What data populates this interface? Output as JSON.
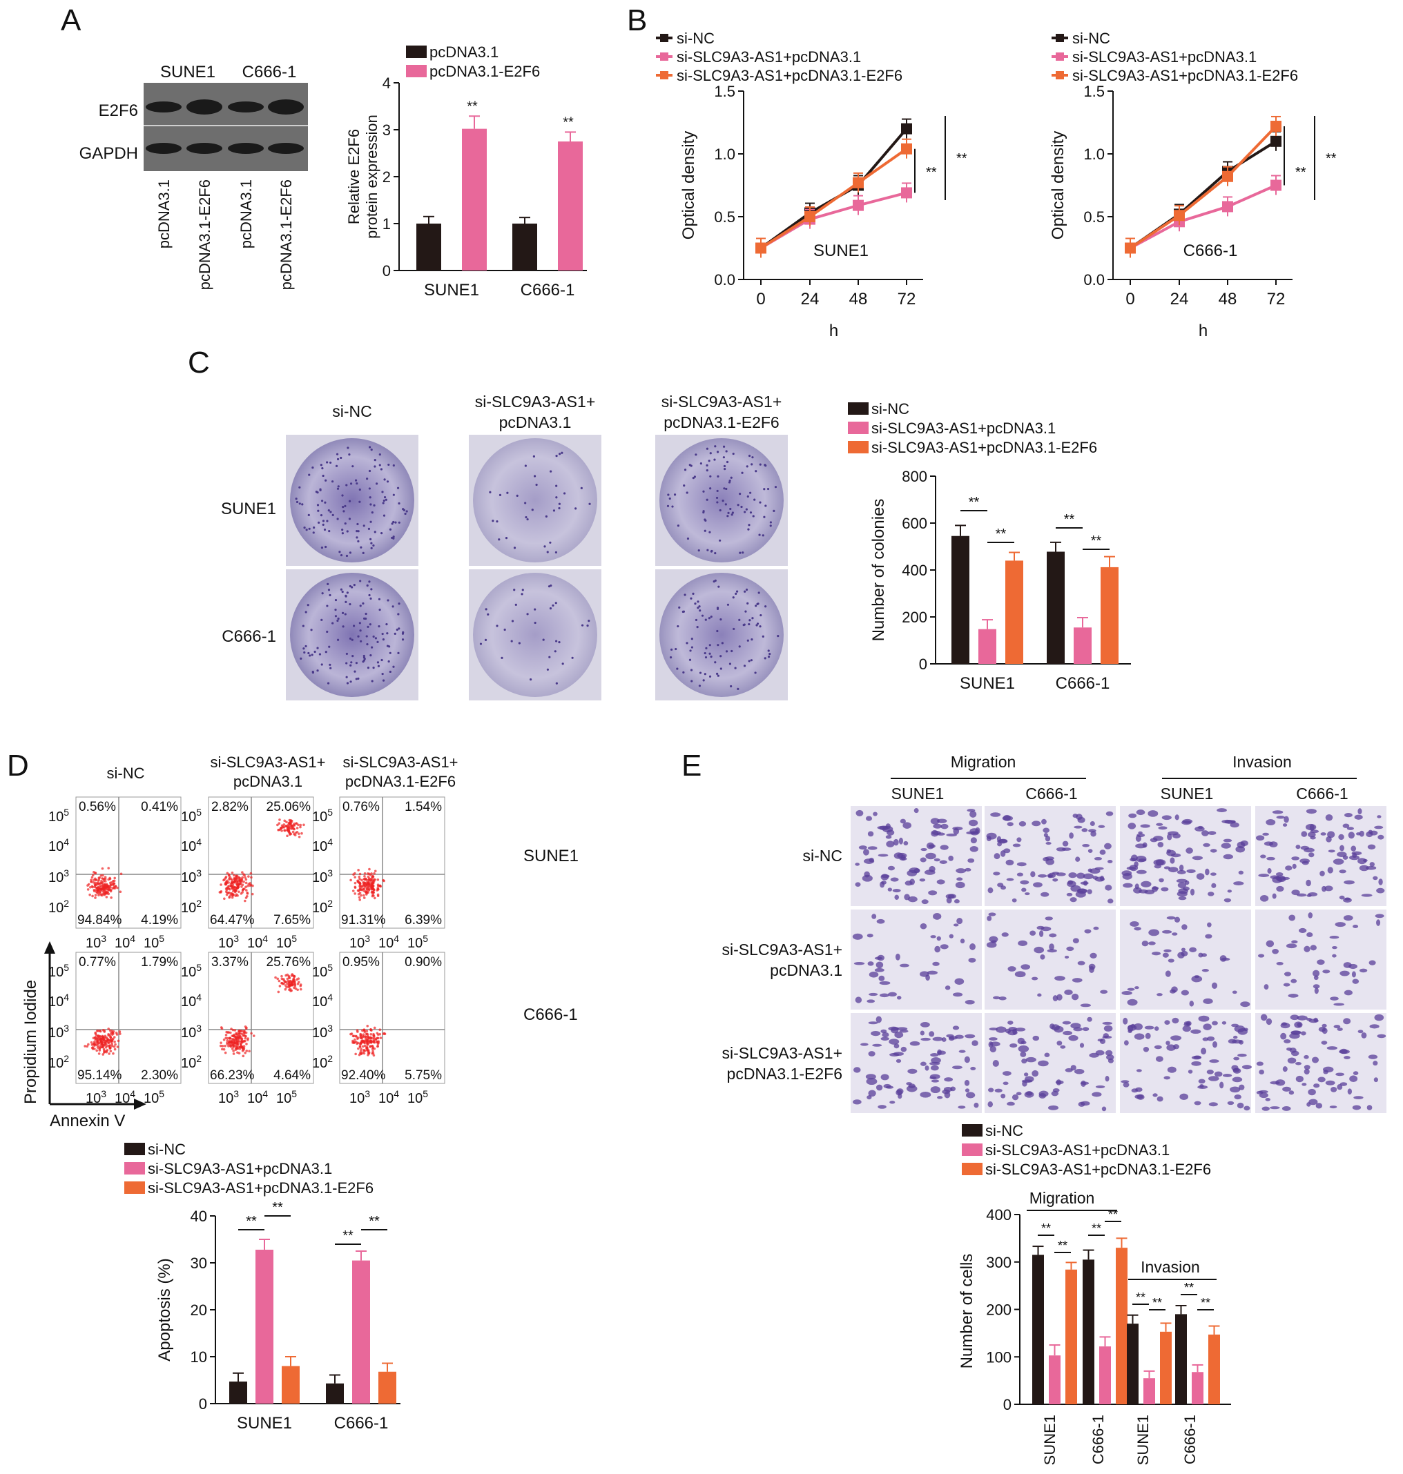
{
  "colors": {
    "black": "#231816",
    "pink": "#E8689A",
    "orange": "#EE6A34",
    "blot_bg": "#6e6e6e",
    "dish_stain": "#4a3a8a",
    "transwell_stain": "#5a3f9a",
    "flow_dot": "#ee2222"
  },
  "panelA": {
    "letter": "A",
    "blot": {
      "cells": [
        "SUNE1",
        "C666-1"
      ],
      "rows": [
        "E2F6",
        "GAPDH"
      ],
      "lanes": [
        "pcDNA3.1",
        "pcDNA3.1-E2F6",
        "pcDNA3.1",
        "pcDNA3.1-E2F6"
      ]
    },
    "chart_data": {
      "type": "bar",
      "categories": [
        "SUNE1",
        "C666-1"
      ],
      "series": [
        {
          "name": "pcDNA3.1",
          "values": [
            1.0,
            1.0
          ],
          "errors": [
            0.15,
            0.13
          ]
        },
        {
          "name": "pcDNA3.1-E2F6",
          "values": [
            3.02,
            2.75
          ],
          "errors": [
            0.27,
            0.2
          ]
        }
      ],
      "ylabel": "Relative E2F6 protein expression",
      "ylabel_lines": [
        "Relative E2F6",
        "protein expression"
      ],
      "ylim": [
        0,
        4
      ],
      "yticks": [
        "0",
        "1",
        "2",
        "3",
        "4"
      ],
      "annotations": [
        "**",
        "**"
      ],
      "legend": "top"
    }
  },
  "panelB": {
    "letter": "B",
    "legend": [
      "si-NC",
      "si-SLC9A3-AS1+pcDNA3.1",
      "si-SLC9A3-AS1+pcDNA3.1-E2F6"
    ],
    "chart_data": [
      {
        "type": "line",
        "title": "SUNE1",
        "x": [
          "0",
          "24",
          "48",
          "72"
        ],
        "series": [
          {
            "name": "si-NC",
            "values": [
              0.25,
              0.53,
              0.75,
              1.2
            ]
          },
          {
            "name": "si-SLC9A3-AS1+pcDNA3.1",
            "values": [
              0.25,
              0.48,
              0.59,
              0.69
            ]
          },
          {
            "name": "si-SLC9A3-AS1+pcDNA3.1-E2F6",
            "values": [
              0.25,
              0.5,
              0.77,
              1.04
            ]
          }
        ],
        "xlabel": "h",
        "ylabel": "Optical density",
        "ylim": [
          0,
          1.5
        ],
        "yticks": [
          "0.0",
          "0.5",
          "1.0",
          "1.5"
        ],
        "annotations": [
          "**",
          "**"
        ]
      },
      {
        "type": "line",
        "title": "C666-1",
        "x": [
          "0",
          "24",
          "48",
          "72"
        ],
        "series": [
          {
            "name": "si-NC",
            "values": [
              0.25,
              0.52,
              0.86,
              1.1
            ]
          },
          {
            "name": "si-SLC9A3-AS1+pcDNA3.1",
            "values": [
              0.25,
              0.46,
              0.58,
              0.75
            ]
          },
          {
            "name": "si-SLC9A3-AS1+pcDNA3.1-E2F6",
            "values": [
              0.25,
              0.51,
              0.82,
              1.22
            ]
          }
        ],
        "xlabel": "h",
        "ylabel": "Optical density",
        "ylim": [
          0,
          1.5
        ],
        "yticks": [
          "0.0",
          "0.5",
          "1.0",
          "1.5"
        ],
        "annotations": [
          "**",
          "**"
        ]
      }
    ]
  },
  "panelC": {
    "letter": "C",
    "columns": [
      [
        "si-NC"
      ],
      [
        "si-SLC9A3-AS1+",
        "pcDNA3.1"
      ],
      [
        "si-SLC9A3-AS1+",
        "pcDNA3.1-E2F6"
      ]
    ],
    "rows": [
      "SUNE1",
      "C666-1"
    ],
    "chart_data": {
      "type": "bar",
      "categories": [
        "SUNE1",
        "C666-1"
      ],
      "series": [
        {
          "name": "si-NC",
          "values": [
            545,
            478
          ],
          "errors": [
            45,
            40
          ]
        },
        {
          "name": "si-SLC9A3-AS1+pcDNA3.1",
          "values": [
            148,
            155
          ],
          "errors": [
            40,
            42
          ]
        },
        {
          "name": "si-SLC9A3-AS1+pcDNA3.1-E2F6",
          "values": [
            440,
            412
          ],
          "errors": [
            35,
            45
          ]
        }
      ],
      "ylabel": "Number of colonies",
      "ylim": [
        0,
        800
      ],
      "yticks": [
        "0",
        "200",
        "400",
        "600",
        "800"
      ],
      "annotations": [
        "**",
        "**",
        "**",
        "**"
      ]
    }
  },
  "panelD": {
    "letter": "D",
    "columns": [
      [
        "si-NC"
      ],
      [
        "si-SLC9A3-AS1+",
        "pcDNA3.1"
      ],
      [
        "si-SLC9A3-AS1+",
        "pcDNA3.1-E2F6"
      ]
    ],
    "rows": [
      "SUNE1",
      "C666-1"
    ],
    "quadrants": [
      [
        "0.56%",
        "0.41%",
        "94.84%",
        "4.19%"
      ],
      [
        "2.82%",
        "25.06%",
        "64.47%",
        "7.65%"
      ],
      [
        "0.76%",
        "1.54%",
        "91.31%",
        "6.39%"
      ],
      [
        "0.77%",
        "1.79%",
        "95.14%",
        "2.30%"
      ],
      [
        "3.37%",
        "25.76%",
        "66.23%",
        "4.64%"
      ],
      [
        "0.95%",
        "0.90%",
        "92.40%",
        "5.75%"
      ]
    ],
    "y_axis": "Propidium Iodide",
    "x_axis": "Annexin V",
    "chart_data": {
      "type": "bar",
      "categories": [
        "SUNE1",
        "C666-1"
      ],
      "series": [
        {
          "name": "si-NC",
          "values": [
            4.7,
            4.3
          ],
          "errors": [
            1.8,
            1.8
          ]
        },
        {
          "name": "si-SLC9A3-AS1+pcDNA3.1",
          "values": [
            32.8,
            30.5
          ],
          "errors": [
            2.2,
            2.0
          ]
        },
        {
          "name": "si-SLC9A3-AS1+pcDNA3.1-E2F6",
          "values": [
            8.0,
            6.8
          ],
          "errors": [
            2.0,
            1.8
          ]
        }
      ],
      "ylabel": "Apoptosis (%)",
      "ylim": [
        0,
        40
      ],
      "yticks": [
        "0",
        "10",
        "20",
        "30",
        "40"
      ],
      "annotations": [
        "**",
        "**",
        "**",
        "**"
      ]
    }
  },
  "panelE": {
    "letter": "E",
    "groups": [
      "Migration",
      "Invasion"
    ],
    "cells": [
      "SUNE1",
      "C666-1",
      "SUNE1",
      "C666-1"
    ],
    "rows": [
      [
        "si-NC"
      ],
      [
        "si-SLC9A3-AS1+",
        "pcDNA3.1"
      ],
      [
        "si-SLC9A3-AS1+",
        "pcDNA3.1-E2F6"
      ]
    ],
    "chart_data": {
      "type": "bar",
      "categories": [
        "SUNE1",
        "C666-1",
        "SUNE1",
        "C666-1"
      ],
      "groups": [
        "Migration",
        "Invasion"
      ],
      "series": [
        {
          "name": "si-NC",
          "values": [
            315,
            305,
            170,
            190
          ],
          "errors": [
            18,
            20,
            18,
            18
          ]
        },
        {
          "name": "si-SLC9A3-AS1+pcDNA3.1",
          "values": [
            103,
            122,
            55,
            68
          ],
          "errors": [
            22,
            20,
            15,
            15
          ]
        },
        {
          "name": "si-SLC9A3-AS1+pcDNA3.1-E2F6",
          "values": [
            284,
            330,
            153,
            147
          ],
          "errors": [
            15,
            20,
            18,
            18
          ]
        }
      ],
      "ylabel": "Number of cells",
      "ylim": [
        0,
        400
      ],
      "yticks": [
        "0",
        "100",
        "200",
        "300",
        "400"
      ],
      "annotations": [
        "**",
        "**",
        "**",
        "**",
        "**",
        "**",
        "**",
        "**"
      ]
    }
  }
}
